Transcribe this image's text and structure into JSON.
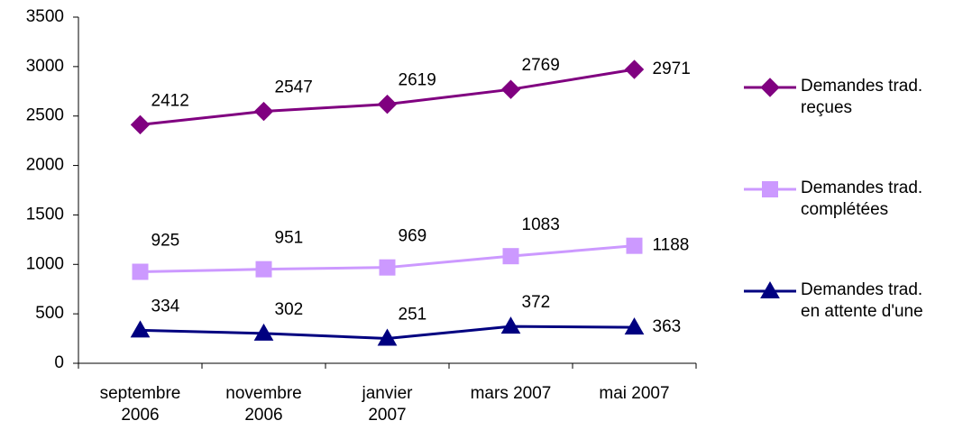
{
  "chart_data": {
    "type": "line",
    "categories": [
      "septembre\n2006",
      "novembre\n2006",
      "janvier\n2007",
      "mars 2007",
      "mai 2007"
    ],
    "series": [
      {
        "name": "Demandes trad.\nreçues",
        "color": "#800080",
        "marker": "diamond",
        "values": [
          2412,
          2547,
          2619,
          2769,
          2971
        ]
      },
      {
        "name": "Demandes trad.\ncomplétées",
        "color": "#cc99ff",
        "marker": "square",
        "values": [
          925,
          951,
          969,
          1083,
          1188
        ]
      },
      {
        "name": "Demandes trad.\nen attente d'une",
        "color": "#000080",
        "marker": "triangle",
        "values": [
          334,
          302,
          251,
          372,
          363
        ]
      }
    ],
    "ylim": [
      0,
      3500
    ],
    "yticks": [
      0,
      500,
      1000,
      1500,
      2000,
      2500,
      3000,
      3500
    ],
    "legend": "right",
    "grid": false
  }
}
